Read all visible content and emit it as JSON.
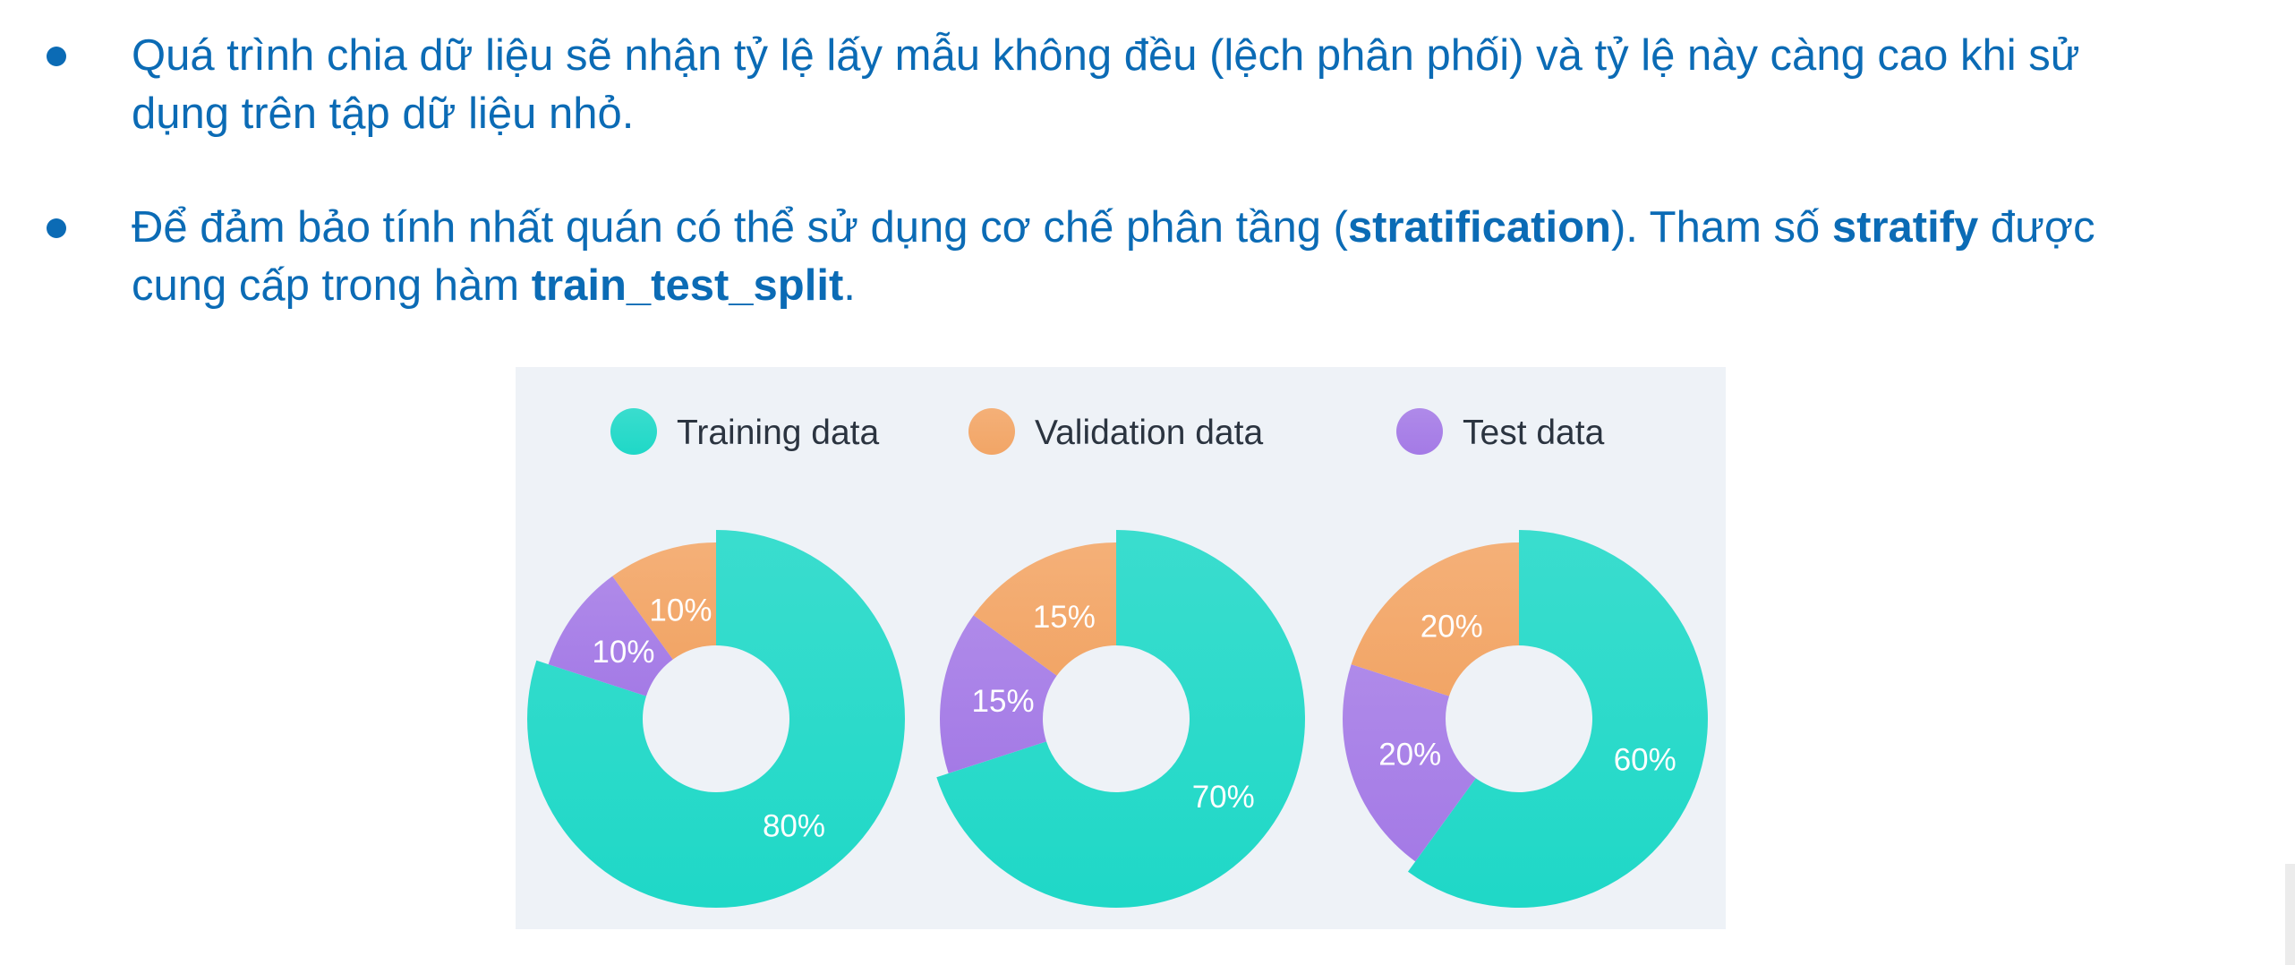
{
  "text_color": "#0b6bb5",
  "bullets": [
    {
      "lines": [
        [
          {
            "t": "Quá trình chia dữ liệu sẽ nhận tỷ lệ lấy mẫu không đều (lệch phân phối) và tỷ lệ này càng cao khi sử",
            "b": false
          }
        ],
        [
          {
            "t": "dụng trên  tập dữ liệu nhỏ.",
            "b": false
          }
        ]
      ]
    },
    {
      "lines": [
        [
          {
            "t": "Để đảm bảo tính nhất quán có thể sử dụng cơ chế phân tầng (",
            "b": false
          },
          {
            "t": "stratification",
            "b": true
          },
          {
            "t": "). Tham số ",
            "b": false
          },
          {
            "t": "stratify",
            "b": true
          },
          {
            "t": " được",
            "b": false
          }
        ],
        [
          {
            "t": "cung cấp trong hàm ",
            "b": false
          },
          {
            "t": "train_test_split",
            "b": true
          },
          {
            "t": ".",
            "b": false
          }
        ]
      ]
    }
  ],
  "chart_data": {
    "type": "pie",
    "background": "#eef2f7",
    "legend_placement": "top",
    "legend": [
      {
        "label": "Training data",
        "color": "#1fd8c7"
      },
      {
        "label": "Validation data",
        "color": "#f2a566"
      },
      {
        "label": "Test data",
        "color": "#a47ae6"
      }
    ],
    "charts": [
      {
        "slices": [
          {
            "series": "Training data",
            "value": 80,
            "label": "80%"
          },
          {
            "series": "Test data",
            "value": 10,
            "label": "10%"
          },
          {
            "series": "Validation data",
            "value": 10,
            "label": "10%"
          }
        ]
      },
      {
        "slices": [
          {
            "series": "Training data",
            "value": 70,
            "label": "70%"
          },
          {
            "series": "Test data",
            "value": 15,
            "label": "15%"
          },
          {
            "series": "Validation data",
            "value": 15,
            "label": "15%"
          }
        ]
      },
      {
        "slices": [
          {
            "series": "Training data",
            "value": 60,
            "label": "60%"
          },
          {
            "series": "Test data",
            "value": 20,
            "label": "20%"
          },
          {
            "series": "Validation data",
            "value": 20,
            "label": "20%"
          }
        ]
      }
    ]
  }
}
